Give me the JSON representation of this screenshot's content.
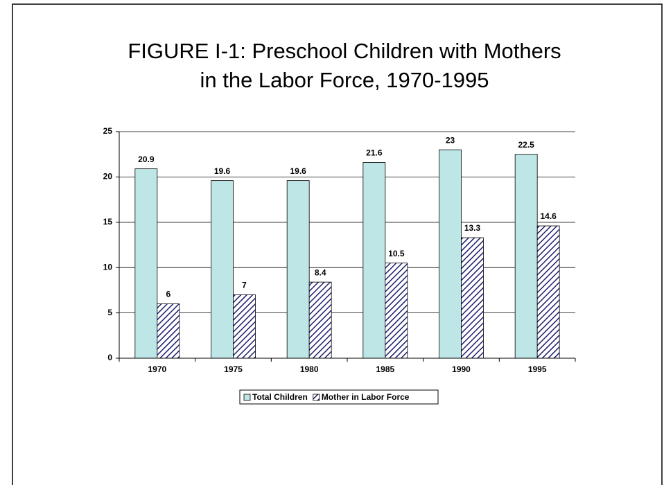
{
  "chart_data": {
    "type": "bar",
    "title": [
      "FIGURE I-1: Preschool Children with Mothers",
      "in the Labor Force, 1970-1995"
    ],
    "categories": [
      "1970",
      "1975",
      "1980",
      "1985",
      "1990",
      "1995"
    ],
    "series": [
      {
        "name": "Total Children",
        "color": "#bfe6e6",
        "values": [
          20.9,
          19.6,
          19.6,
          21.6,
          23,
          22.5
        ]
      },
      {
        "name": "Mother in Labor Force",
        "color": "#1c1c6e",
        "pattern": "hatch",
        "values": [
          6,
          7,
          8.4,
          10.5,
          13.3,
          14.6
        ]
      }
    ],
    "ylim": [
      0,
      25
    ],
    "yticks": [
      0,
      5,
      10,
      15,
      20,
      25
    ],
    "grid": true,
    "legend": "bottom"
  }
}
